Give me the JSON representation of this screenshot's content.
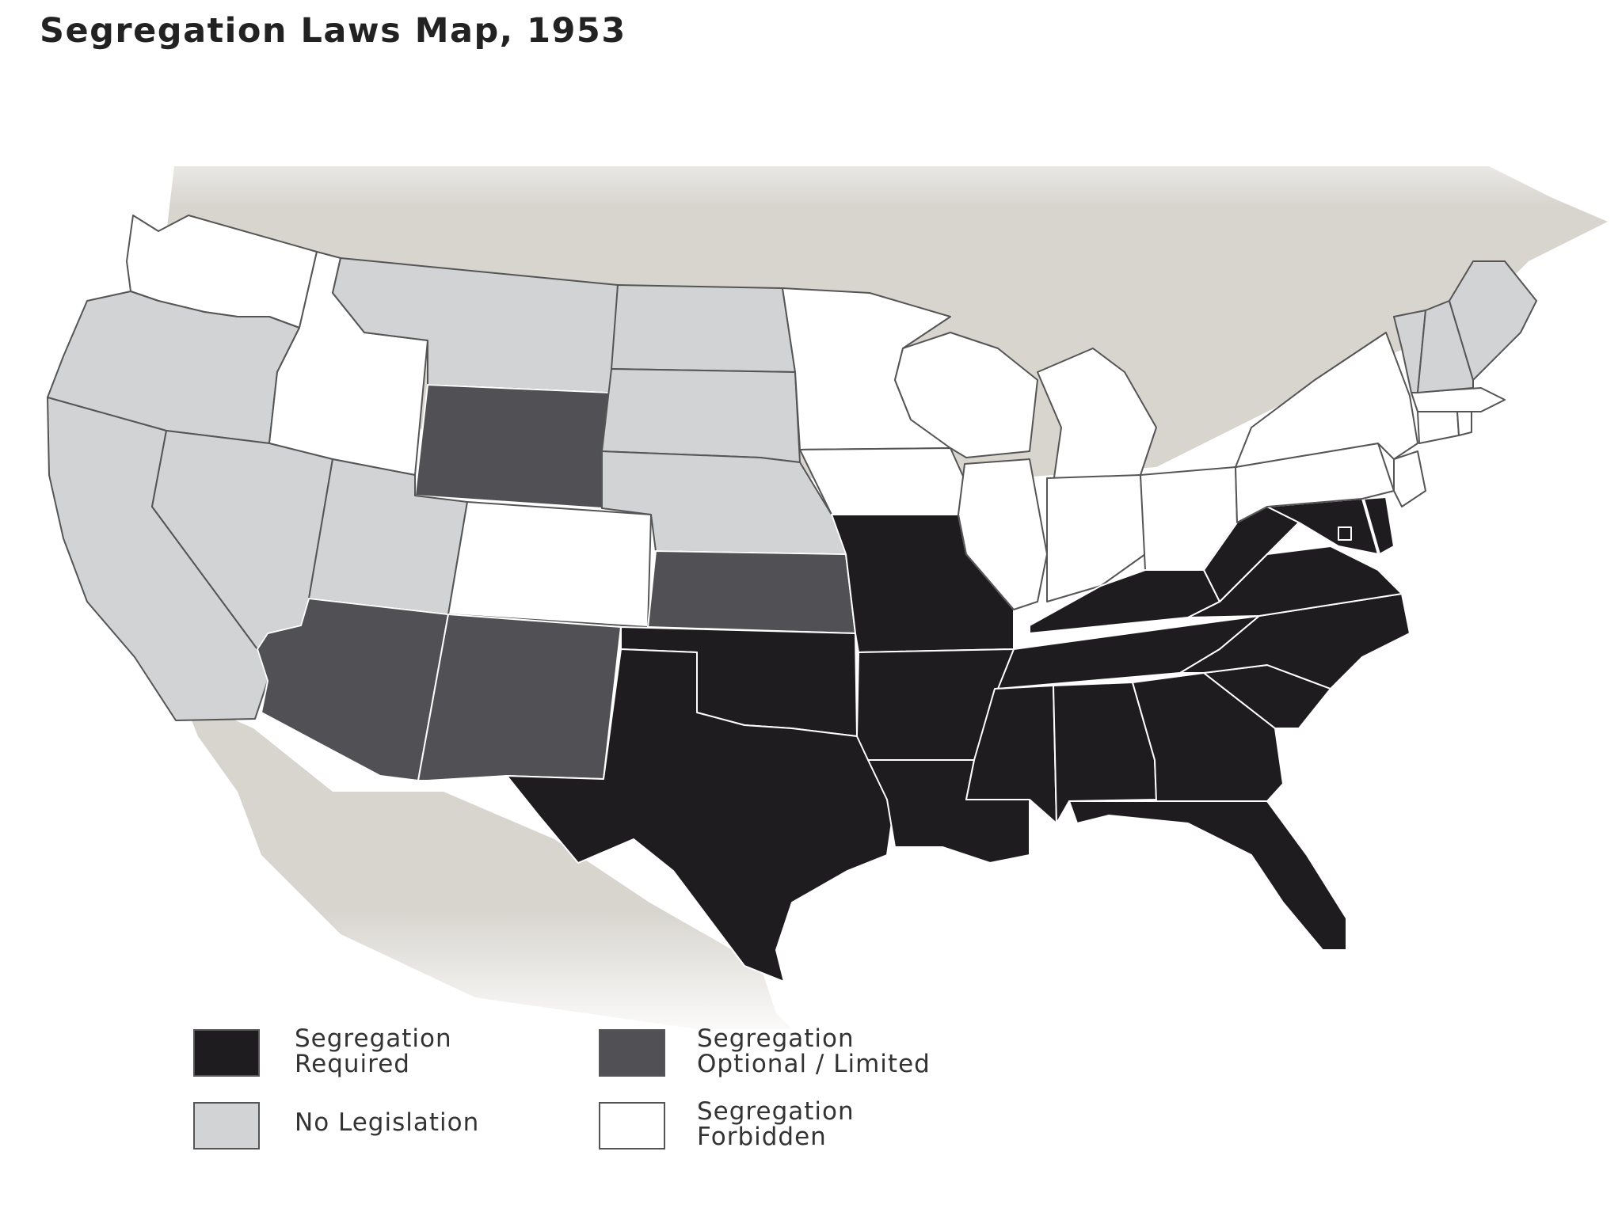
{
  "title": "Segregation Laws Map, 1953",
  "colors": {
    "required": "#1f1c1f",
    "optional": "#515054",
    "no_legislation": "#d2d3d5",
    "forbidden": "#ffffff",
    "land_background": "#d8d5cf",
    "border_light": "#ffffff",
    "border_dark": "#555555"
  },
  "legend": [
    {
      "key": "required",
      "label": "Segregation\nRequired"
    },
    {
      "key": "optional",
      "label": "Segregation\nOptional / Limited"
    },
    {
      "key": "no_legislation",
      "label": "No Legislation"
    },
    {
      "key": "forbidden",
      "label": "Segregation\nForbidden"
    }
  ],
  "states": [
    {
      "name": "Washington",
      "status": "forbidden"
    },
    {
      "name": "Oregon",
      "status": "no_legislation"
    },
    {
      "name": "California",
      "status": "no_legislation"
    },
    {
      "name": "Idaho",
      "status": "forbidden"
    },
    {
      "name": "Nevada",
      "status": "no_legislation"
    },
    {
      "name": "Montana",
      "status": "no_legislation"
    },
    {
      "name": "Wyoming",
      "status": "optional"
    },
    {
      "name": "Utah",
      "status": "no_legislation"
    },
    {
      "name": "Arizona",
      "status": "optional"
    },
    {
      "name": "Colorado",
      "status": "forbidden"
    },
    {
      "name": "New Mexico",
      "status": "optional"
    },
    {
      "name": "North Dakota",
      "status": "no_legislation"
    },
    {
      "name": "South Dakota",
      "status": "no_legislation"
    },
    {
      "name": "Nebraska",
      "status": "no_legislation"
    },
    {
      "name": "Kansas",
      "status": "optional"
    },
    {
      "name": "Oklahoma",
      "status": "required"
    },
    {
      "name": "Texas",
      "status": "required"
    },
    {
      "name": "Minnesota",
      "status": "forbidden"
    },
    {
      "name": "Iowa",
      "status": "forbidden"
    },
    {
      "name": "Missouri",
      "status": "required"
    },
    {
      "name": "Arkansas",
      "status": "required"
    },
    {
      "name": "Louisiana",
      "status": "required"
    },
    {
      "name": "Wisconsin",
      "status": "forbidden"
    },
    {
      "name": "Illinois",
      "status": "forbidden"
    },
    {
      "name": "Michigan",
      "status": "forbidden"
    },
    {
      "name": "Indiana",
      "status": "forbidden"
    },
    {
      "name": "Ohio",
      "status": "forbidden"
    },
    {
      "name": "Kentucky",
      "status": "required"
    },
    {
      "name": "Tennessee",
      "status": "required"
    },
    {
      "name": "Mississippi",
      "status": "required"
    },
    {
      "name": "Alabama",
      "status": "required"
    },
    {
      "name": "Georgia",
      "status": "required"
    },
    {
      "name": "Florida",
      "status": "required"
    },
    {
      "name": "South Carolina",
      "status": "required"
    },
    {
      "name": "North Carolina",
      "status": "required"
    },
    {
      "name": "Virginia",
      "status": "required"
    },
    {
      "name": "West Virginia",
      "status": "required"
    },
    {
      "name": "Maryland",
      "status": "required"
    },
    {
      "name": "Delaware",
      "status": "required"
    },
    {
      "name": "District of Columbia",
      "status": "required"
    },
    {
      "name": "Pennsylvania",
      "status": "forbidden"
    },
    {
      "name": "New York",
      "status": "forbidden"
    },
    {
      "name": "New Jersey",
      "status": "forbidden"
    },
    {
      "name": "Connecticut",
      "status": "forbidden"
    },
    {
      "name": "Rhode Island",
      "status": "forbidden"
    },
    {
      "name": "Massachusetts",
      "status": "forbidden"
    },
    {
      "name": "Vermont",
      "status": "no_legislation"
    },
    {
      "name": "New Hampshire",
      "status": "no_legislation"
    },
    {
      "name": "Maine",
      "status": "no_legislation"
    }
  ]
}
